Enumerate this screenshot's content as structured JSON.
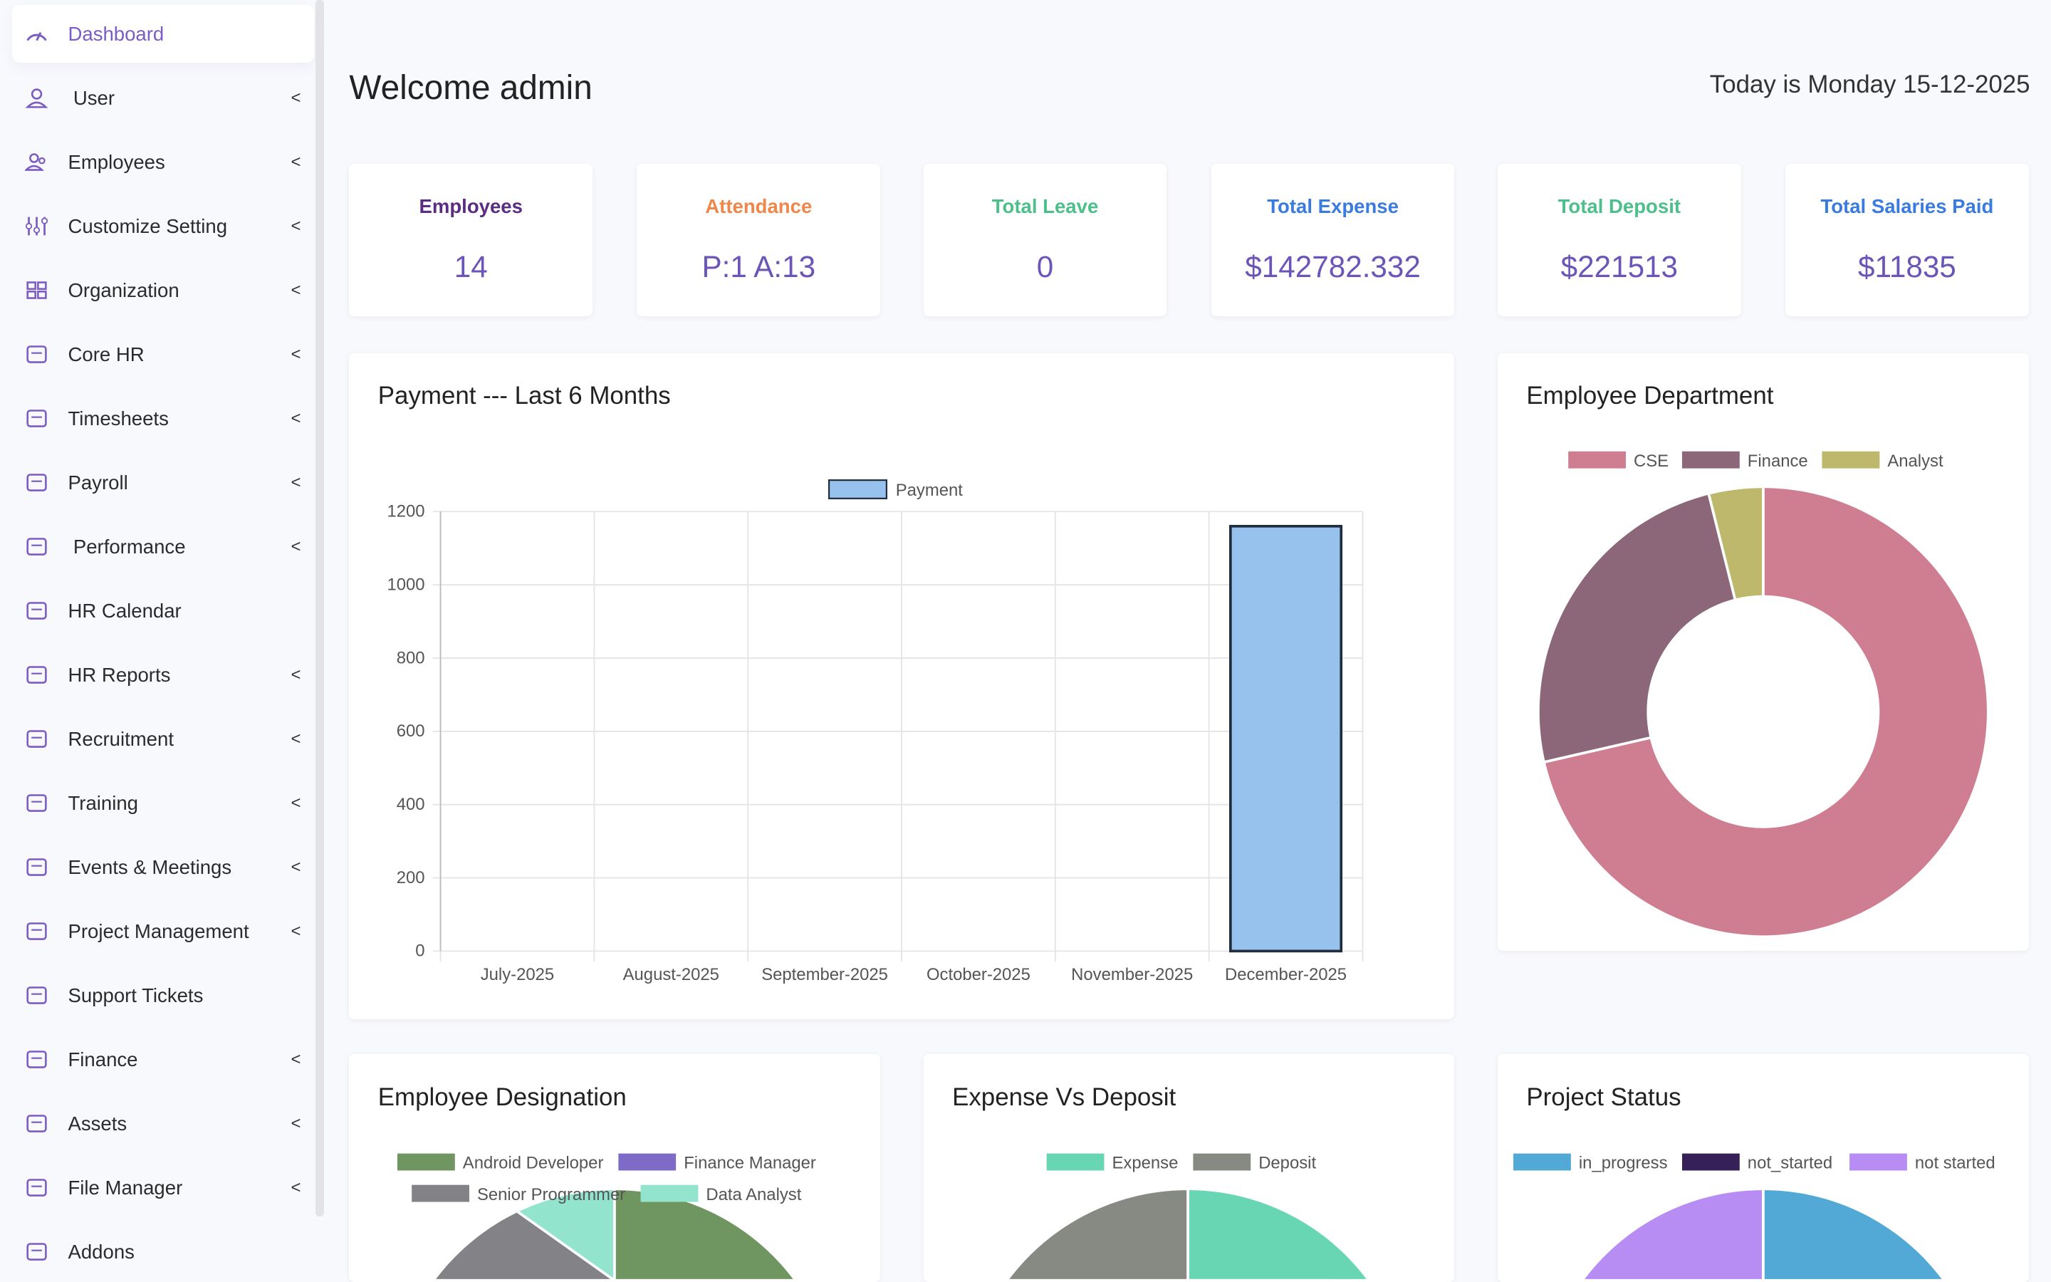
{
  "sidebar": {
    "items": [
      {
        "label": "Dashboard",
        "icon": "gauge-icon",
        "active": true,
        "chevron": false
      },
      {
        "label": "User",
        "icon": "user-icon",
        "chevron": true
      },
      {
        "label": "Employees",
        "icon": "users-icon",
        "chevron": true
      },
      {
        "label": "Customize Setting",
        "icon": "sliders-icon",
        "chevron": true
      },
      {
        "label": "Organization",
        "icon": "grid-icon",
        "chevron": true
      },
      {
        "label": "Core HR",
        "icon": "briefcase-icon",
        "chevron": true
      },
      {
        "label": "Timesheets",
        "icon": "clock-icon",
        "chevron": true
      },
      {
        "label": "Payroll",
        "icon": "wallet-icon",
        "chevron": true
      },
      {
        "label": "Performance",
        "icon": "bar-chart-icon",
        "chevron": true
      },
      {
        "label": "HR Calendar",
        "icon": "calendar-icon",
        "chevron": false
      },
      {
        "label": "HR Reports",
        "icon": "report-icon",
        "chevron": true
      },
      {
        "label": "Recruitment",
        "icon": "id-card-icon",
        "chevron": true
      },
      {
        "label": "Training",
        "icon": "trophy-icon",
        "chevron": true
      },
      {
        "label": "Events & Meetings",
        "icon": "event-icon",
        "chevron": true
      },
      {
        "label": "Project Management",
        "icon": "list-icon",
        "chevron": true
      },
      {
        "label": "Support Tickets",
        "icon": "ticket-icon",
        "chevron": false
      },
      {
        "label": "Finance",
        "icon": "finance-icon",
        "chevron": true
      },
      {
        "label": "Assets",
        "icon": "archive-icon",
        "chevron": true
      },
      {
        "label": "File Manager",
        "icon": "folder-icon",
        "chevron": true
      },
      {
        "label": "Addons",
        "icon": "flag-icon",
        "chevron": false
      }
    ],
    "chevron": "<"
  },
  "header": {
    "welcome": "Welcome admin",
    "today": "Today is Monday 15-12-2025"
  },
  "stats": [
    {
      "title": "Employees",
      "value": "14",
      "color": "#5b2c83"
    },
    {
      "title": "Attendance",
      "value": "P:1 A:13",
      "color": "#f0874a"
    },
    {
      "title": "Total Leave",
      "value": "0",
      "color": "#4cbf8a"
    },
    {
      "title": "Total Expense",
      "value": "$142782.332",
      "color": "#3a7be0"
    },
    {
      "title": "Total Deposit",
      "value": "$221513",
      "color": "#4cbf8a"
    },
    {
      "title": "Total Salaries Paid",
      "value": "$11835",
      "color": "#3a7be0"
    }
  ],
  "chart_data": [
    {
      "type": "bar",
      "title": "Payment --- Last 6 Months",
      "categories": [
        "July-2025",
        "August-2025",
        "September-2025",
        "October-2025",
        "November-2025",
        "December-2025"
      ],
      "series": [
        {
          "name": "Payment",
          "values": [
            0,
            0,
            0,
            0,
            0,
            1160
          ],
          "color": "#97c2ee",
          "border": "#1f2d3d"
        }
      ],
      "ylim": [
        0,
        1200
      ],
      "yticks": [
        0,
        200,
        400,
        600,
        800,
        1000,
        1200
      ],
      "grid": true,
      "legend": "top"
    },
    {
      "type": "pie",
      "donut": true,
      "title": "Employee Department",
      "labels": [
        "CSE",
        "Finance",
        "Analyst"
      ],
      "values": [
        71.4,
        24.7,
        3.9
      ],
      "colors": [
        "#cf7e91",
        "#8b6779",
        "#bdb86c"
      ],
      "legend": "top"
    },
    {
      "type": "pie",
      "title": "Employee Designation",
      "labels": [
        "Android Developer",
        "Finance Manager",
        "Senior Programmer",
        "Data Analyst"
      ],
      "values": [
        8,
        3,
        2,
        1
      ],
      "colors": [
        "#6f9560",
        "#7e6bc8",
        "#838387",
        "#92e4cc"
      ],
      "legend": "top"
    },
    {
      "type": "pie",
      "title": "Expense Vs Deposit",
      "labels": [
        "Expense",
        "Deposit"
      ],
      "values": [
        142782.332,
        221513
      ],
      "colors": [
        "#68d5b3",
        "#868a83"
      ],
      "legend": "top"
    },
    {
      "type": "pie",
      "title": "Project Status",
      "labels": [
        "in_progress",
        "not_started",
        "not started"
      ],
      "values": [
        1,
        0,
        1
      ],
      "colors": [
        "#52a9d6",
        "#352058",
        "#b78cf3"
      ],
      "legend": "top"
    }
  ]
}
